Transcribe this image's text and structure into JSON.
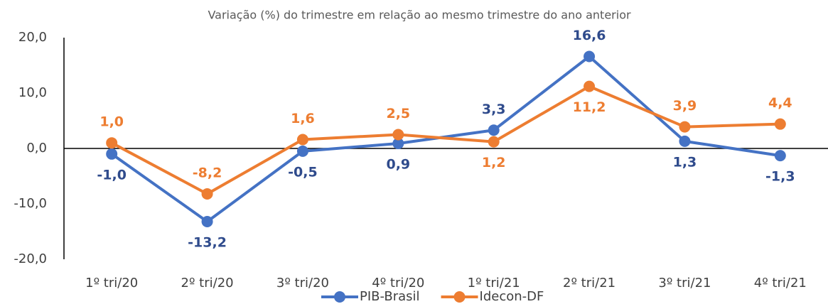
{
  "chart_data": {
    "type": "line",
    "title": "Variação (%) do trimestre em relação ao mesmo trimestre do ano anterior",
    "categories": [
      "1º tri/20",
      "2º tri/20",
      "3º tri/20",
      "4º tri/20",
      "1º tri/21",
      "2º tri/21",
      "3º tri/21",
      "4º tri/21"
    ],
    "series": [
      {
        "name": "PIB-Brasil",
        "color": "#4472c4",
        "label_color": "#2f4b8c",
        "values": [
          -1.0,
          -13.2,
          -0.5,
          0.9,
          3.3,
          16.6,
          1.3,
          -1.3
        ],
        "value_labels": [
          "-1,0",
          "-13,2",
          "-0,5",
          "0,9",
          "3,3",
          "16,6",
          "1,3",
          "-1,3"
        ]
      },
      {
        "name": "Idecon-DF",
        "color": "#ed7d31",
        "label_color": "#ed7d31",
        "values": [
          1.0,
          -8.2,
          1.6,
          2.5,
          1.2,
          11.2,
          3.9,
          4.4
        ],
        "value_labels": [
          "1,0",
          "-8,2",
          "1,6",
          "2,5",
          "1,2",
          "11,2",
          "3,9",
          "4,4"
        ]
      }
    ],
    "ylim": [
      -20,
      20
    ],
    "yticks": [
      {
        "value": -20,
        "label": "-20,0"
      },
      {
        "value": -10,
        "label": "-10,0"
      },
      {
        "value": 0,
        "label": "0,0"
      },
      {
        "value": 10,
        "label": "10,0"
      },
      {
        "value": 20,
        "label": "20,0"
      }
    ],
    "legend": "bottom"
  }
}
